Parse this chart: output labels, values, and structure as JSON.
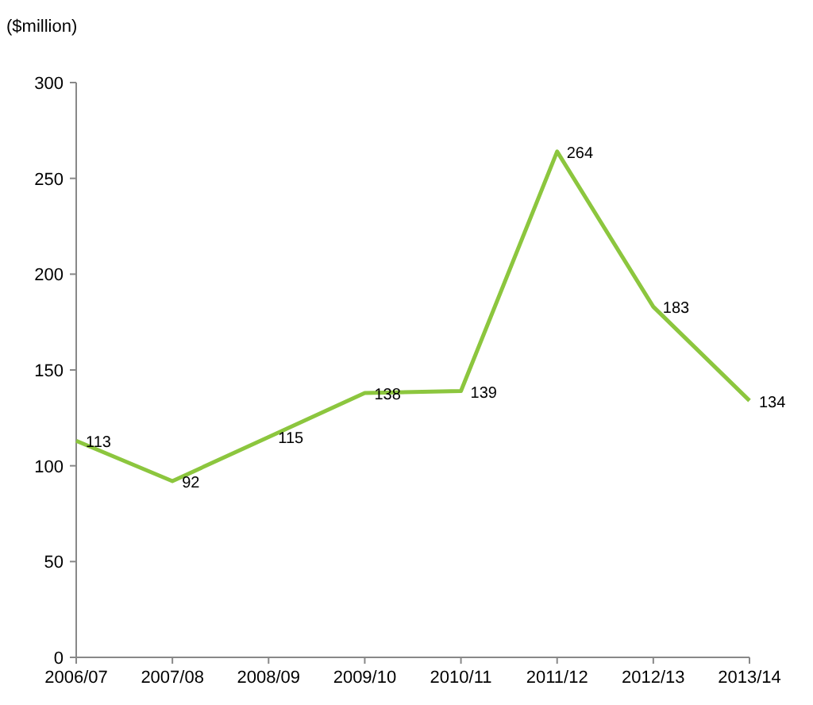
{
  "chart_data": {
    "type": "line",
    "ylabel": "($million)",
    "categories": [
      "2006/07",
      "2007/08",
      "2008/09",
      "2009/10",
      "2010/11",
      "2011/12",
      "2012/13",
      "2013/14"
    ],
    "values": [
      113,
      92,
      115,
      138,
      139,
      264,
      183,
      134
    ],
    "color": "#8cc63e",
    "ylim": [
      0,
      300
    ],
    "yticks": [
      0,
      50,
      100,
      150,
      200,
      250,
      300
    ],
    "data_labels": true,
    "marker": "none"
  }
}
